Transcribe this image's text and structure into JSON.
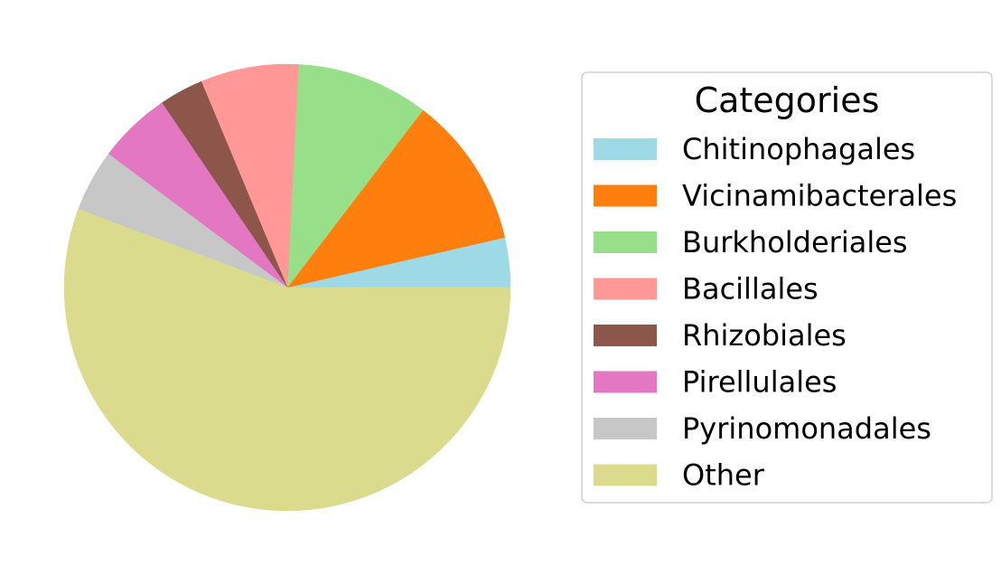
{
  "chart_data": {
    "type": "pie",
    "title": "",
    "legend": {
      "title": "Categories",
      "placement": "right"
    },
    "start_angle_deg": 0,
    "direction": "counterclockwise",
    "slices": [
      {
        "label": "Chitinophagales",
        "value": 3.6,
        "color": "#9edae5"
      },
      {
        "label": "Vicinamibacterales",
        "value": 11.0,
        "color": "#ff7f0e"
      },
      {
        "label": "Burkholderiales",
        "value": 9.6,
        "color": "#98df8a"
      },
      {
        "label": "Bacillales",
        "value": 7.1,
        "color": "#ff9896"
      },
      {
        "label": "Rhizobiales",
        "value": 3.2,
        "color": "#8c564b"
      },
      {
        "label": "Pirellulales",
        "value": 5.3,
        "color": "#e377c2"
      },
      {
        "label": "Pyrinomonadales",
        "value": 4.5,
        "color": "#c7c7c7"
      },
      {
        "label": "Other",
        "value": 55.7,
        "color": "#dbdb8d"
      }
    ]
  }
}
